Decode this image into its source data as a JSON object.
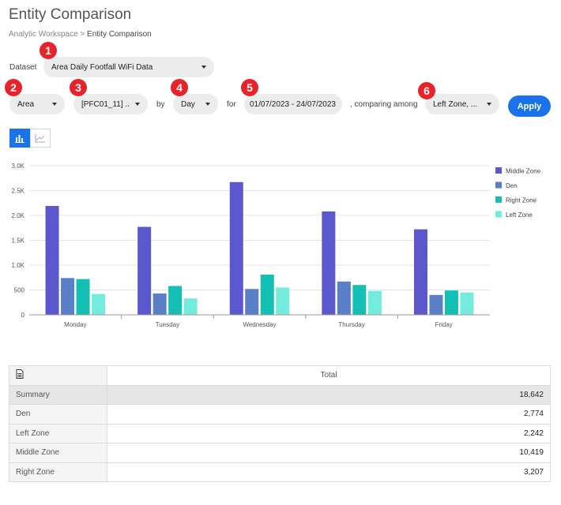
{
  "header": {
    "title": "Entity Comparison",
    "breadcrumb_parent": "Analytic Workspace",
    "breadcrumb_sep": " > ",
    "breadcrumb_current": "Entity Comparison"
  },
  "controls": {
    "dataset_label": "Dataset",
    "dataset_value": "Area Daily Footfall WiFi Data",
    "level_value": "Area",
    "entity_value": "[PFC01_11] ...",
    "by_label": "by",
    "interval_value": "Day",
    "for_label": "for",
    "date_range": "01/07/2023 - 24/07/2023",
    "comparing_label": ", comparing among",
    "compare_value": "Left Zone, ...",
    "apply_label": "Apply"
  },
  "badges": [
    "1",
    "2",
    "3",
    "4",
    "5",
    "6"
  ],
  "view_toggle": [
    {
      "icon": "bar-chart-icon",
      "active": true
    },
    {
      "icon": "line-chart-icon",
      "active": false
    }
  ],
  "colors": {
    "accent": "#1a73e8",
    "badge": "#e8232a"
  },
  "chart_data": {
    "type": "bar",
    "categories": [
      "Monday",
      "Tuesday",
      "Wednesday",
      "Thursday",
      "Friday"
    ],
    "series": [
      {
        "name": "Middle Zone",
        "color": "#5b57cc",
        "values": [
          2190,
          1770,
          2670,
          2080,
          1720
        ]
      },
      {
        "name": "Den",
        "color": "#5a7fc6",
        "values": [
          740,
          430,
          520,
          670,
          400
        ]
      },
      {
        "name": "Right Zone",
        "color": "#14c0b4",
        "values": [
          720,
          580,
          810,
          600,
          490
        ]
      },
      {
        "name": "Left Zone",
        "color": "#73ecde",
        "values": [
          420,
          330,
          550,
          480,
          450
        ]
      }
    ],
    "yticks": [
      "0",
      "500",
      "1.0K",
      "1.5K",
      "2.0K",
      "2.5K",
      "3.0K"
    ],
    "ylim": [
      0,
      3000
    ],
    "grid": true,
    "legend": "right"
  },
  "table": {
    "header_total": "Total",
    "header_icon": "export-icon",
    "rows": [
      {
        "name": "Summary",
        "value": "18,642"
      },
      {
        "name": "Den",
        "value": "2,774"
      },
      {
        "name": "Left Zone",
        "value": "2,242"
      },
      {
        "name": "Middle Zone",
        "value": "10,419"
      },
      {
        "name": "Right Zone",
        "value": "3,207"
      }
    ]
  }
}
